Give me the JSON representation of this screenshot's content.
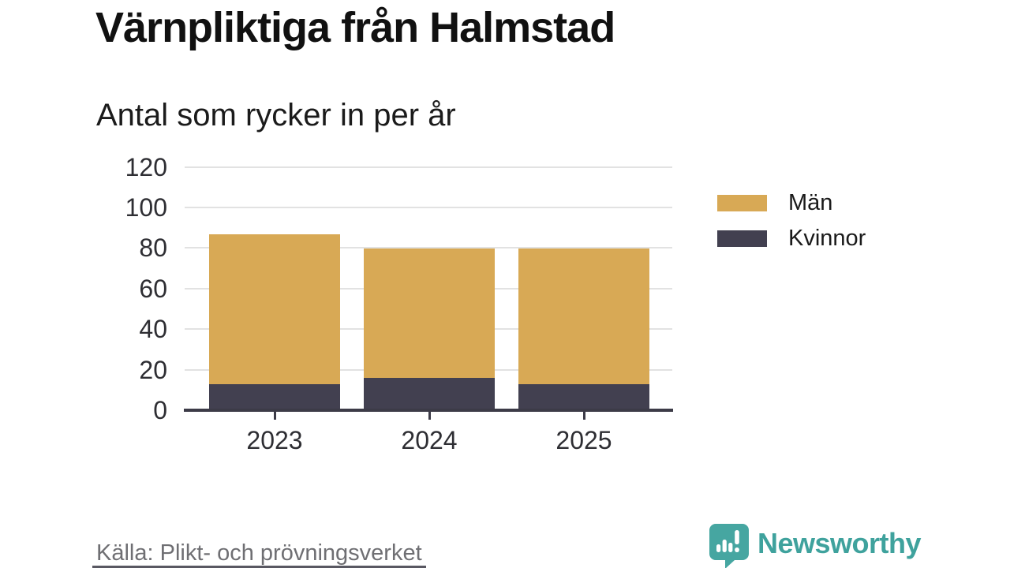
{
  "header": {
    "title": "Värnpliktiga från Halmstad",
    "subtitle": "Antal som rycker in per år"
  },
  "footer": {
    "source": "Källa: Plikt- och prövningsverket",
    "brand_name": "Newsworthy"
  },
  "colors": {
    "men": "#D8A955",
    "women": "#424050",
    "grid": "#E2E2E2",
    "axis": "#3C3B47",
    "text": "#2E2E33",
    "muted": "#6F6F73",
    "brand": "#3FA29D"
  },
  "legend": [
    {
      "label": "Män",
      "color": "#D8A955"
    },
    {
      "label": "Kvinnor",
      "color": "#424050"
    }
  ],
  "chart_data": {
    "type": "bar",
    "stacked": true,
    "categories": [
      "2023",
      "2024",
      "2025"
    ],
    "series": [
      {
        "name": "Kvinnor",
        "color": "#424050",
        "values": [
          13,
          16,
          13
        ]
      },
      {
        "name": "Män",
        "color": "#D8A955",
        "values": [
          74,
          64,
          67
        ]
      }
    ],
    "series_order": "bottom-to-top",
    "totals": [
      87,
      80,
      80
    ],
    "title": "Värnpliktiga från Halmstad",
    "subtitle": "Antal som rycker in per år",
    "xlabel": "",
    "ylabel": "",
    "ylim": [
      0,
      120
    ],
    "yticks": [
      0,
      20,
      40,
      60,
      80,
      100,
      120
    ],
    "grid": true,
    "legend_position": "right"
  }
}
